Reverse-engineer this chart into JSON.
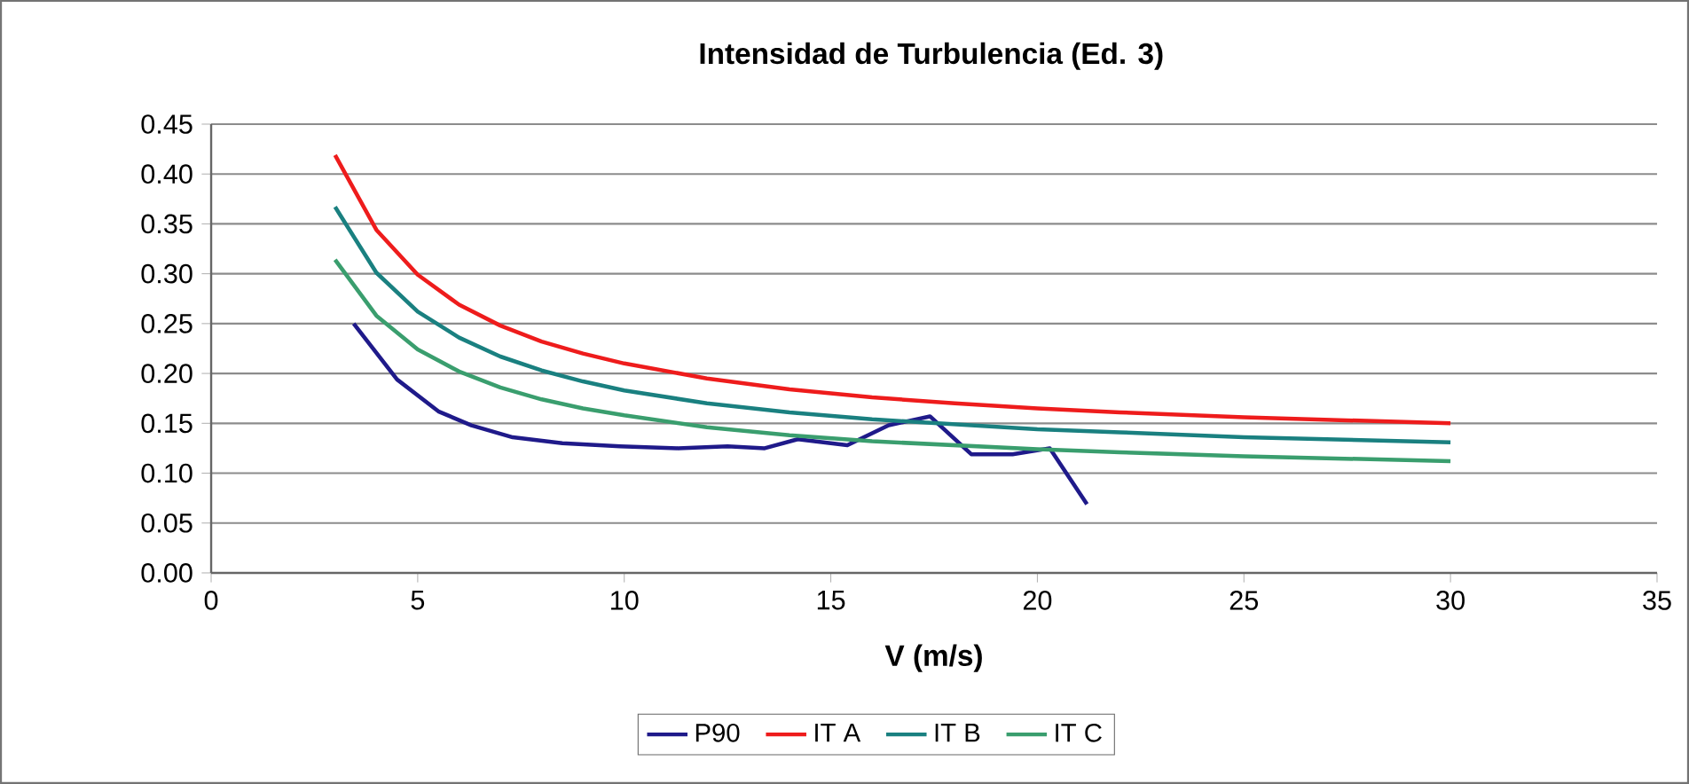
{
  "chart_data": {
    "type": "line",
    "title": "Intensidad de Turbulencia (Ed. 3)",
    "xlabel": "V (m/s)",
    "xlim": [
      0,
      35
    ],
    "xticks": [
      0,
      5,
      10,
      15,
      20,
      25,
      30,
      35
    ],
    "ylim": [
      0,
      0.45
    ],
    "yticks": [
      {
        "value": 0,
        "label": "0.00"
      },
      {
        "value": 0.05,
        "label": "0.05"
      },
      {
        "value": 0.1,
        "label": "0.10"
      },
      {
        "value": 0.15,
        "label": "0.15"
      },
      {
        "value": 0.2,
        "label": "0.20"
      },
      {
        "value": 0.25,
        "label": "0.25"
      },
      {
        "value": 0.3,
        "label": "0.30"
      },
      {
        "value": 0.35,
        "label": "0.35"
      },
      {
        "value": 0.4,
        "label": "0.40"
      },
      {
        "value": 0.45,
        "label": "0.45"
      }
    ],
    "grid": "y",
    "legend": "bottom",
    "marker": "none",
    "line_style": "solid",
    "series": [
      {
        "name": "P90",
        "color": "#1f1a8a",
        "x": [
          3.45,
          4.5,
          5.5,
          6.3,
          7.3,
          8.5,
          9.9,
          11.3,
          12.5,
          13.4,
          14.2,
          15.4,
          16.4,
          17.4,
          18.4,
          19.4,
          20.3,
          21.2
        ],
        "values": [
          0.25,
          0.194,
          0.162,
          0.148,
          0.136,
          0.13,
          0.127,
          0.125,
          0.127,
          0.125,
          0.134,
          0.128,
          0.148,
          0.157,
          0.119,
          0.119,
          0.125,
          0.069
        ]
      },
      {
        "name": "IT A",
        "color": "#ee1c1c",
        "x": [
          3,
          4,
          5,
          6,
          7,
          8,
          9,
          10,
          12,
          14,
          16,
          18,
          20,
          22,
          25,
          30
        ],
        "values": [
          0.419,
          0.344,
          0.299,
          0.269,
          0.248,
          0.232,
          0.22,
          0.21,
          0.195,
          0.184,
          0.176,
          0.17,
          0.165,
          0.161,
          0.156,
          0.15
        ]
      },
      {
        "name": "IT B",
        "color": "#1a8080",
        "x": [
          3,
          4,
          5,
          6,
          7,
          8,
          9,
          10,
          12,
          14,
          16,
          18,
          20,
          22,
          25,
          30
        ],
        "values": [
          0.367,
          0.301,
          0.262,
          0.236,
          0.217,
          0.203,
          0.192,
          0.183,
          0.17,
          0.161,
          0.154,
          0.149,
          0.144,
          0.141,
          0.136,
          0.131
        ]
      },
      {
        "name": "IT C",
        "color": "#3a9e6e",
        "x": [
          3,
          4,
          5,
          6,
          7,
          8,
          9,
          10,
          12,
          14,
          16,
          18,
          20,
          22,
          25,
          30
        ],
        "values": [
          0.314,
          0.258,
          0.224,
          0.202,
          0.186,
          0.174,
          0.165,
          0.158,
          0.146,
          0.138,
          0.132,
          0.128,
          0.124,
          0.121,
          0.117,
          0.112
        ]
      }
    ]
  }
}
